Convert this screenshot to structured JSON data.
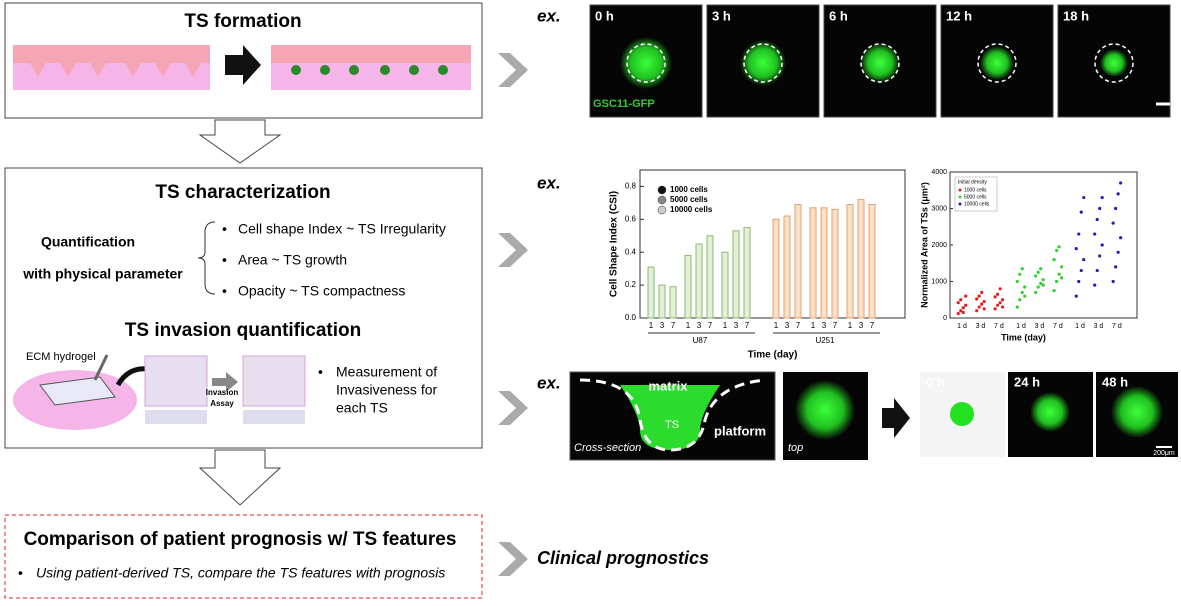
{
  "formation": {
    "title": "TS formation"
  },
  "timelapse": {
    "ex": "ex.",
    "frames": [
      "0 h",
      "3 h",
      "6 h",
      "12 h",
      "18 h"
    ],
    "label": "GSC11-GFP"
  },
  "characterization": {
    "title": "TS characterization",
    "quant_lines": [
      "Quantification",
      "with physical parameter"
    ],
    "bullets": [
      "Cell shape Index ~ TS Irregularity",
      "Area ~ TS growth",
      "Opacity ~ TS compactness"
    ]
  },
  "invasion": {
    "title": "TS invasion quantification",
    "ecm": "ECM hydrogel",
    "assay_lines": [
      "Invasion",
      "Assay"
    ],
    "bullet_lines": [
      "Measurement of",
      "Invasiveness for",
      "each TS"
    ]
  },
  "csi_chart": {
    "type": "bar",
    "ex": "ex.",
    "y_label": "Cell Shape Index (CSI)",
    "x_label": "Time (day)",
    "categories": [
      "1",
      "3",
      "7",
      "1",
      "3",
      "7"
    ],
    "groups": [
      "U87",
      "U251"
    ],
    "group_colors": [
      "#e3efd6",
      "#fbe0c8"
    ],
    "group_strokes": [
      "#8fb870",
      "#e0a070"
    ],
    "series": [
      {
        "name": "1000 cells",
        "color": "#111111",
        "values": [
          0.31,
          0.2,
          0.19,
          0.6,
          0.62,
          0.69
        ]
      },
      {
        "name": "5000 cells",
        "color": "#888888",
        "values": [
          0.38,
          0.45,
          0.5,
          0.67,
          0.67,
          0.66
        ]
      },
      {
        "name": "10000 cells",
        "color": "#cccccc",
        "values": [
          0.4,
          0.53,
          0.55,
          0.69,
          0.72,
          0.69
        ]
      }
    ],
    "ylim": [
      0,
      0.9
    ],
    "yticks": [
      {
        "value": 0,
        "label": "0.0"
      },
      0.2,
      0.4,
      0.6,
      0.8
    ]
  },
  "area_chart": {
    "type": "scatter",
    "y_label": "Normalized Area of TSs (μm²)",
    "x_label": "Time (day)",
    "legend_title": "Initial density",
    "categories": [
      "1 d",
      "3 d",
      "7 d"
    ],
    "series": [
      {
        "name": "1000 cells",
        "color": "#e02020",
        "values": [
          [
            120,
            200,
            280,
            350,
            420,
            500,
            150,
            600
          ],
          [
            200,
            300,
            380,
            450,
            520,
            600,
            700,
            250
          ],
          [
            250,
            350,
            420,
            500,
            580,
            650,
            800,
            300
          ]
        ]
      },
      {
        "name": "5000 cells",
        "color": "#30d030",
        "values": [
          [
            300,
            500,
            700,
            850,
            1000,
            1200,
            1350,
            600
          ],
          [
            700,
            850,
            950,
            1050,
            1150,
            1250,
            1350,
            900
          ],
          [
            750,
            1000,
            1200,
            1400,
            1600,
            1850,
            1950,
            1100
          ]
        ]
      },
      {
        "name": "10000 cells",
        "color": "#2020b0",
        "values": [
          [
            600,
            1000,
            1300,
            1600,
            1900,
            2300,
            2900,
            3300
          ],
          [
            900,
            1300,
            1700,
            2000,
            2300,
            2700,
            3000,
            3300
          ],
          [
            1000,
            1400,
            1800,
            2200,
            2600,
            3000,
            3400,
            3700
          ]
        ]
      }
    ],
    "ylim": [
      0,
      4000
    ],
    "yticks": [
      0,
      1000,
      2000,
      3000,
      4000
    ]
  },
  "invasion_images": {
    "ex": "ex.",
    "matrix": "matrix",
    "ts": "TS",
    "platform": "platform",
    "cross": "Cross-section",
    "top": "top",
    "frames": [
      "0 h",
      "24 h",
      "48 h"
    ],
    "scale": "200μm"
  },
  "prognosis": {
    "title": "Comparison of patient prognosis w/ TS features",
    "bullet": "Using patient-derived TS, compare the TS features with  prognosis"
  },
  "clinical": "Clinical prognostics"
}
